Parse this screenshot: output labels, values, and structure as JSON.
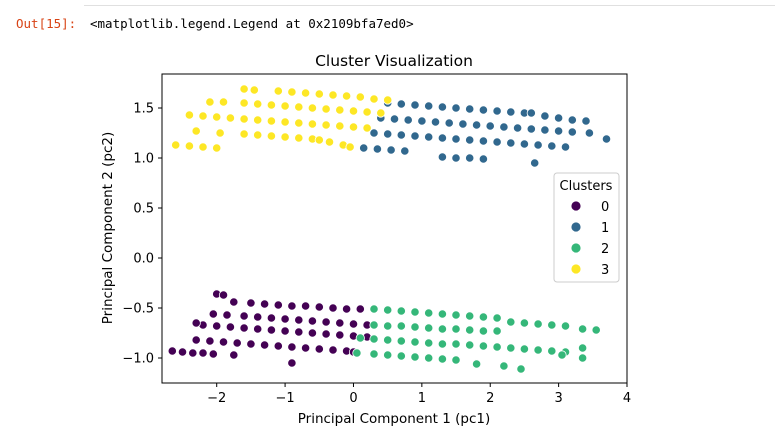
{
  "output": {
    "prompt": "Out[15]:",
    "text": "<matplotlib.legend.Legend at 0x2109bfa7ed0>"
  },
  "chart_data": {
    "type": "scatter",
    "title": "Cluster Visualization",
    "xlabel": "Principal Component 1 (pc1)",
    "ylabel": "Principal Component 2 (pc2)",
    "xlim": [
      -2.8,
      4.0
    ],
    "ylim": [
      -1.25,
      1.84
    ],
    "xticks": [
      -2,
      -1,
      0,
      1,
      2,
      3,
      4
    ],
    "xtick_labels": [
      "−2",
      "−1",
      "0",
      "1",
      "2",
      "3",
      "4"
    ],
    "yticks": [
      -1.0,
      -0.5,
      0.0,
      0.5,
      1.0,
      1.5
    ],
    "ytick_labels": [
      "−1.0",
      "−0.5",
      "0.0",
      "0.5",
      "1.0",
      "1.5"
    ],
    "grid": false,
    "legend": {
      "title": "Clusters",
      "placement": "center-right",
      "entries": [
        "0",
        "1",
        "2",
        "3"
      ]
    },
    "colors": {
      "0": "#440154",
      "1": "#31688e",
      "2": "#35b779",
      "3": "#fde725"
    },
    "series": [
      {
        "name": "0",
        "points": [
          [
            -2.65,
            -0.93
          ],
          [
            -2.5,
            -0.94
          ],
          [
            -2.35,
            -0.95
          ],
          [
            -2.2,
            -0.95
          ],
          [
            -2.05,
            -0.96
          ],
          [
            -1.75,
            -0.97
          ],
          [
            -2.3,
            -0.82
          ],
          [
            -2.1,
            -0.83
          ],
          [
            -1.9,
            -0.84
          ],
          [
            -1.7,
            -0.85
          ],
          [
            -1.5,
            -0.86
          ],
          [
            -1.3,
            -0.87
          ],
          [
            -1.1,
            -0.88
          ],
          [
            -0.9,
            -0.89
          ],
          [
            -0.7,
            -0.9
          ],
          [
            -0.5,
            -0.91
          ],
          [
            -0.3,
            -0.92
          ],
          [
            -0.1,
            -0.93
          ],
          [
            0.0,
            -0.94
          ],
          [
            -2.2,
            -0.67
          ],
          [
            -2.0,
            -0.68
          ],
          [
            -1.8,
            -0.69
          ],
          [
            -1.6,
            -0.7
          ],
          [
            -1.4,
            -0.71
          ],
          [
            -1.2,
            -0.72
          ],
          [
            -1.0,
            -0.73
          ],
          [
            -0.8,
            -0.74
          ],
          [
            -0.6,
            -0.75
          ],
          [
            -0.4,
            -0.76
          ],
          [
            -0.2,
            -0.77
          ],
          [
            0.0,
            -0.78
          ],
          [
            0.2,
            -0.79
          ],
          [
            -2.3,
            -0.65
          ],
          [
            -2.05,
            -0.56
          ],
          [
            -1.85,
            -0.57
          ],
          [
            -1.6,
            -0.58
          ],
          [
            -1.4,
            -0.59
          ],
          [
            -1.2,
            -0.6
          ],
          [
            -1.0,
            -0.61
          ],
          [
            -0.8,
            -0.62
          ],
          [
            -0.6,
            -0.63
          ],
          [
            -0.4,
            -0.64
          ],
          [
            -0.2,
            -0.65
          ],
          [
            0.0,
            -0.66
          ],
          [
            0.2,
            -0.67
          ],
          [
            -2.0,
            -0.36
          ],
          [
            -1.9,
            -0.37
          ],
          [
            -1.75,
            -0.44
          ],
          [
            -1.5,
            -0.45
          ],
          [
            -1.3,
            -0.46
          ],
          [
            -1.1,
            -0.47
          ],
          [
            -0.9,
            -0.48
          ],
          [
            -0.7,
            -0.48
          ],
          [
            -0.5,
            -0.49
          ],
          [
            -0.3,
            -0.5
          ],
          [
            -0.1,
            -0.51
          ],
          [
            0.1,
            -0.51
          ],
          [
            -0.9,
            -1.05
          ]
        ]
      },
      {
        "name": "1",
        "points": [
          [
            0.5,
            1.55
          ],
          [
            0.7,
            1.54
          ],
          [
            0.9,
            1.53
          ],
          [
            1.1,
            1.52
          ],
          [
            1.3,
            1.51
          ],
          [
            1.5,
            1.5
          ],
          [
            1.7,
            1.49
          ],
          [
            1.9,
            1.48
          ],
          [
            2.1,
            1.47
          ],
          [
            2.3,
            1.46
          ],
          [
            2.5,
            1.45
          ],
          [
            0.4,
            1.4
          ],
          [
            0.6,
            1.39
          ],
          [
            0.8,
            1.38
          ],
          [
            1.0,
            1.37
          ],
          [
            1.2,
            1.36
          ],
          [
            1.4,
            1.35
          ],
          [
            1.6,
            1.34
          ],
          [
            1.8,
            1.33
          ],
          [
            2.0,
            1.32
          ],
          [
            2.2,
            1.31
          ],
          [
            2.4,
            1.3
          ],
          [
            2.6,
            1.29
          ],
          [
            2.8,
            1.28
          ],
          [
            3.0,
            1.27
          ],
          [
            3.2,
            1.26
          ],
          [
            3.45,
            1.25
          ],
          [
            0.3,
            1.25
          ],
          [
            0.5,
            1.24
          ],
          [
            0.7,
            1.23
          ],
          [
            0.9,
            1.22
          ],
          [
            1.1,
            1.21
          ],
          [
            1.3,
            1.2
          ],
          [
            1.5,
            1.19
          ],
          [
            1.7,
            1.18
          ],
          [
            1.9,
            1.17
          ],
          [
            2.1,
            1.16
          ],
          [
            2.3,
            1.15
          ],
          [
            2.5,
            1.14
          ],
          [
            2.7,
            1.13
          ],
          [
            2.9,
            1.12
          ],
          [
            3.1,
            1.11
          ],
          [
            0.15,
            1.1
          ],
          [
            0.35,
            1.09
          ],
          [
            0.55,
            1.08
          ],
          [
            0.75,
            1.07
          ],
          [
            2.6,
            1.45
          ],
          [
            2.8,
            1.42
          ],
          [
            3.0,
            1.4
          ],
          [
            3.2,
            1.38
          ],
          [
            3.4,
            1.37
          ],
          [
            3.7,
            1.19
          ],
          [
            1.3,
            1.01
          ],
          [
            1.5,
            1.0
          ],
          [
            1.7,
            1.0
          ],
          [
            1.9,
            0.99
          ],
          [
            2.65,
            0.95
          ]
        ]
      },
      {
        "name": "2",
        "points": [
          [
            0.3,
            -0.51
          ],
          [
            0.5,
            -0.52
          ],
          [
            0.7,
            -0.53
          ],
          [
            0.9,
            -0.54
          ],
          [
            1.1,
            -0.55
          ],
          [
            1.3,
            -0.56
          ],
          [
            1.5,
            -0.57
          ],
          [
            1.7,
            -0.58
          ],
          [
            1.9,
            -0.59
          ],
          [
            2.1,
            -0.6
          ],
          [
            0.3,
            -0.67
          ],
          [
            0.5,
            -0.68
          ],
          [
            0.7,
            -0.68
          ],
          [
            0.9,
            -0.69
          ],
          [
            1.1,
            -0.7
          ],
          [
            1.3,
            -0.71
          ],
          [
            1.5,
            -0.71
          ],
          [
            1.7,
            -0.72
          ],
          [
            1.9,
            -0.73
          ],
          [
            2.1,
            -0.73
          ],
          [
            2.3,
            -0.64
          ],
          [
            2.5,
            -0.65
          ],
          [
            2.7,
            -0.66
          ],
          [
            2.9,
            -0.67
          ],
          [
            3.1,
            -0.68
          ],
          [
            3.35,
            -0.71
          ],
          [
            3.55,
            -0.72
          ],
          [
            0.1,
            -0.8
          ],
          [
            0.3,
            -0.81
          ],
          [
            0.5,
            -0.82
          ],
          [
            0.7,
            -0.83
          ],
          [
            0.9,
            -0.84
          ],
          [
            1.1,
            -0.85
          ],
          [
            1.3,
            -0.86
          ],
          [
            1.5,
            -0.86
          ],
          [
            1.7,
            -0.87
          ],
          [
            1.9,
            -0.88
          ],
          [
            2.1,
            -0.89
          ],
          [
            2.3,
            -0.9
          ],
          [
            2.5,
            -0.91
          ],
          [
            2.7,
            -0.92
          ],
          [
            2.9,
            -0.93
          ],
          [
            3.1,
            -0.94
          ],
          [
            3.35,
            -0.9
          ],
          [
            0.05,
            -0.95
          ],
          [
            0.3,
            -0.96
          ],
          [
            0.5,
            -0.97
          ],
          [
            0.7,
            -0.98
          ],
          [
            0.9,
            -0.99
          ],
          [
            1.1,
            -1.0
          ],
          [
            1.3,
            -1.01
          ],
          [
            1.5,
            -1.02
          ],
          [
            1.8,
            -1.06
          ],
          [
            2.2,
            -1.08
          ],
          [
            2.45,
            -1.11
          ],
          [
            3.05,
            -0.97
          ],
          [
            3.35,
            -1.0
          ]
        ]
      },
      {
        "name": "3",
        "points": [
          [
            -1.6,
            1.69
          ],
          [
            -1.45,
            1.68
          ],
          [
            -1.1,
            1.67
          ],
          [
            -0.9,
            1.66
          ],
          [
            -0.7,
            1.65
          ],
          [
            -0.5,
            1.64
          ],
          [
            -0.3,
            1.63
          ],
          [
            -0.1,
            1.62
          ],
          [
            0.1,
            1.61
          ],
          [
            0.3,
            1.59
          ],
          [
            0.5,
            1.58
          ],
          [
            -1.9,
            1.56
          ],
          [
            -1.6,
            1.55
          ],
          [
            -1.4,
            1.54
          ],
          [
            -1.2,
            1.53
          ],
          [
            -1.0,
            1.52
          ],
          [
            -0.8,
            1.51
          ],
          [
            -0.6,
            1.5
          ],
          [
            -0.4,
            1.49
          ],
          [
            -0.2,
            1.48
          ],
          [
            0.0,
            1.47
          ],
          [
            0.2,
            1.46
          ],
          [
            0.4,
            1.45
          ],
          [
            -2.4,
            1.43
          ],
          [
            -2.2,
            1.42
          ],
          [
            -2.0,
            1.41
          ],
          [
            -1.8,
            1.4
          ],
          [
            -1.6,
            1.39
          ],
          [
            -1.4,
            1.38
          ],
          [
            -1.2,
            1.37
          ],
          [
            -1.0,
            1.36
          ],
          [
            -0.8,
            1.35
          ],
          [
            -0.6,
            1.34
          ],
          [
            -0.4,
            1.33
          ],
          [
            -0.2,
            1.32
          ],
          [
            0.0,
            1.31
          ],
          [
            0.2,
            1.3
          ],
          [
            -2.3,
            1.27
          ],
          [
            -1.95,
            1.25
          ],
          [
            -1.6,
            1.24
          ],
          [
            -1.4,
            1.23
          ],
          [
            -1.2,
            1.22
          ],
          [
            -1.0,
            1.21
          ],
          [
            -0.8,
            1.2
          ],
          [
            -0.6,
            1.19
          ],
          [
            -0.5,
            1.18
          ],
          [
            -0.35,
            1.16
          ],
          [
            -2.6,
            1.13
          ],
          [
            -2.4,
            1.12
          ],
          [
            -2.2,
            1.11
          ],
          [
            -2.0,
            1.1
          ],
          [
            -0.15,
            1.13
          ],
          [
            -0.05,
            1.11
          ],
          [
            -2.1,
            1.56
          ]
        ]
      }
    ]
  }
}
